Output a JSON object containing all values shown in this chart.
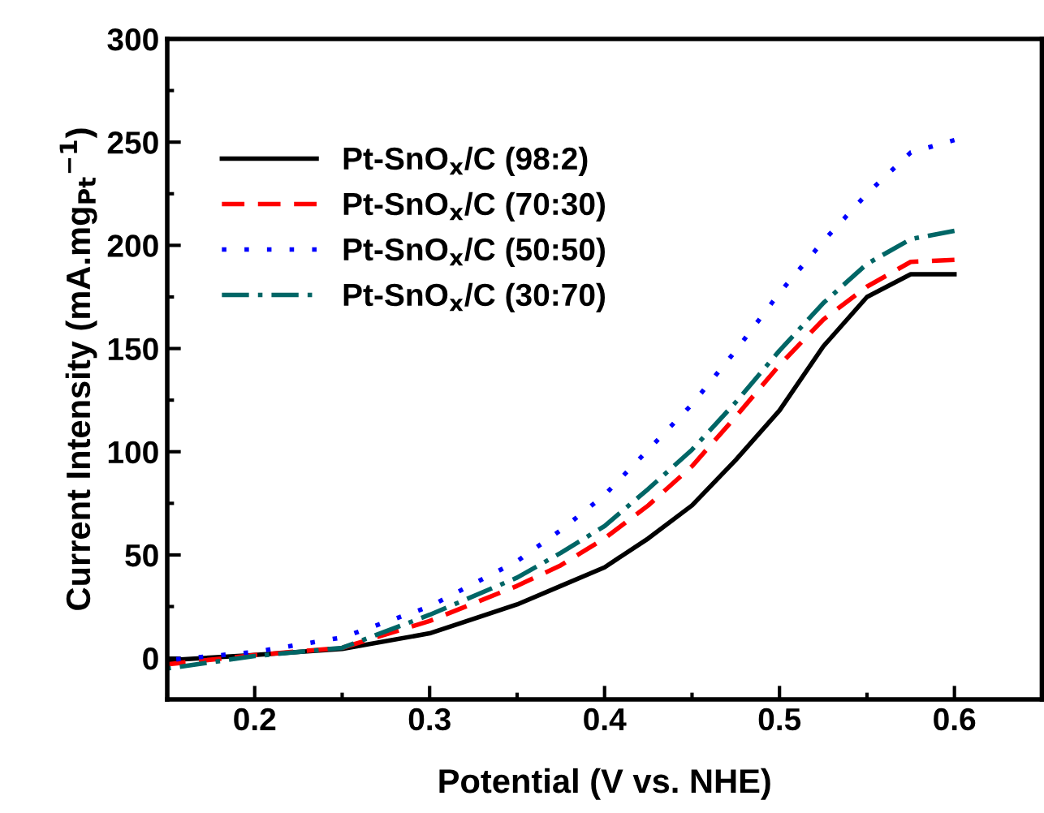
{
  "chart_data": {
    "type": "line",
    "xlabel": "Potential (V vs. NHE)",
    "ylabel": "Current Intensity (mA.mg$_{Pt}$$^{−1}$)",
    "x": [
      0.15,
      0.2,
      0.25,
      0.3,
      0.35,
      0.375,
      0.4,
      0.425,
      0.45,
      0.475,
      0.5,
      0.525,
      0.55,
      0.575,
      0.6
    ],
    "series": [
      {
        "name": "Pt-SnO$_{x}$/C (98:2)",
        "color": "#000000",
        "line_style": "solid",
        "values": [
          -1,
          1.5,
          4.5,
          12,
          26,
          35,
          44,
          58,
          74,
          96,
          120,
          151,
          175,
          186,
          186
        ]
      },
      {
        "name": "Pt-SnO$_{x}$/C (70:30)",
        "color": "#ff0000",
        "line_style": "dashed",
        "values": [
          -3,
          1.5,
          5,
          18,
          35,
          45,
          58,
          74,
          93,
          117,
          142,
          164,
          180,
          192,
          193
        ]
      },
      {
        "name": "Pt-SnO$_{x}$/C (50:50)",
        "color": "#0000ff",
        "line_style": "dotted",
        "values": [
          -1,
          3,
          10,
          25,
          47,
          62,
          79,
          101,
          123,
          149,
          177,
          202,
          225,
          245,
          251
        ]
      },
      {
        "name": "Pt-SnO$_{x}$/C (30:70)",
        "color": "#006666",
        "line_style": "dashdot",
        "values": [
          -5,
          1,
          5,
          21,
          39,
          51,
          64,
          82,
          101,
          124,
          149,
          172,
          191,
          203,
          207
        ]
      }
    ],
    "xlim": [
      0.15,
      0.65
    ],
    "ylim": [
      -20,
      300
    ],
    "xticks": [
      0.2,
      0.3,
      0.4,
      0.5,
      0.6
    ],
    "yticks": [
      0,
      50,
      100,
      150,
      200,
      250,
      300
    ],
    "legend": "top left",
    "grid": false
  }
}
